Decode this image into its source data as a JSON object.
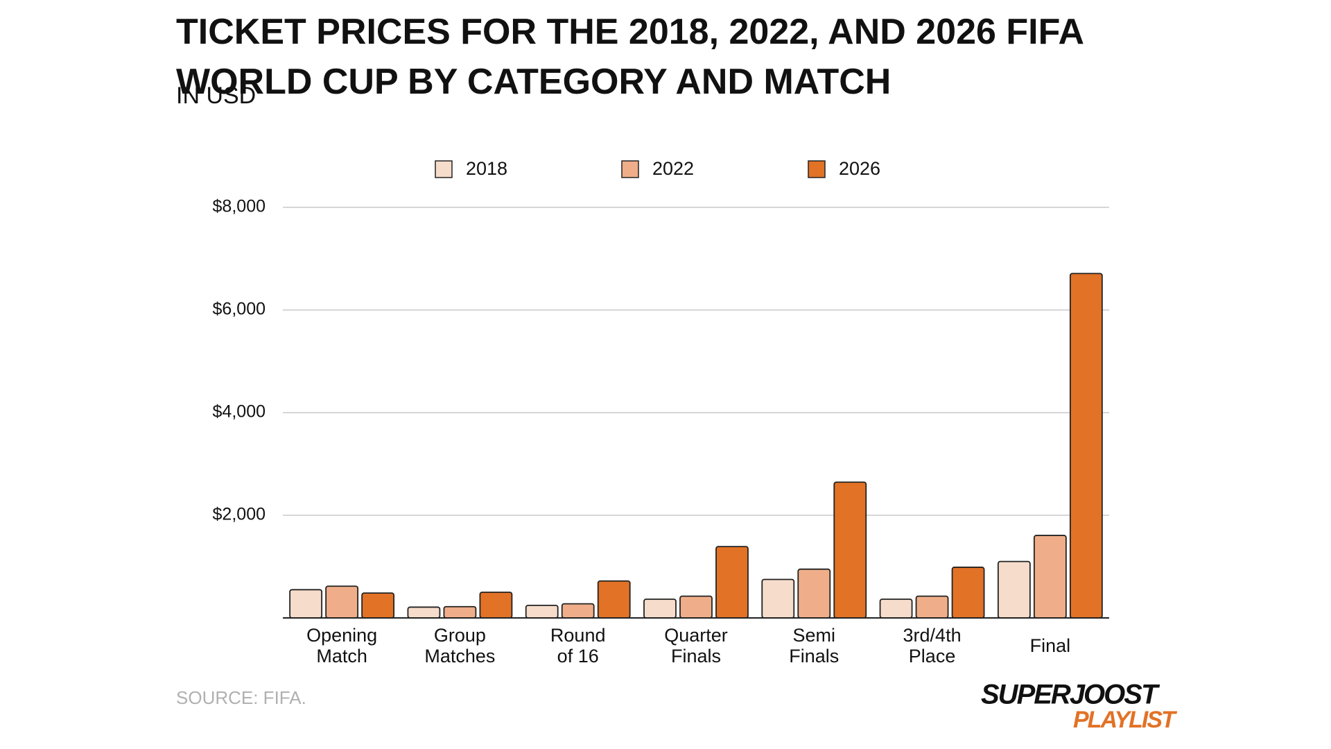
{
  "chart_data": {
    "type": "bar",
    "title": "TICKET PRICES FOR THE 2018, 2022, AND 2026 FIFA\nWORLD CUP BY CATEGORY AND MATCH",
    "subtitle": "IN USD",
    "categories": [
      "Opening\nMatch",
      "Group\nMatches",
      "Round\nof 16",
      "Quarter\nFinals",
      "Semi\nFinals",
      "3rd/4th\nPlace",
      "Final"
    ],
    "series": [
      {
        "name": "2018",
        "color": "#f6dccb",
        "values": [
          550,
          210,
          245,
          365,
          750,
          365,
          1100
        ]
      },
      {
        "name": "2022",
        "color": "#efae89",
        "values": [
          618,
          220,
          275,
          424,
          950,
          424,
          1607
        ]
      },
      {
        "name": "2026",
        "color": "#e27226",
        "values": [
          485,
          500,
          720,
          1390,
          2645,
          987,
          6711
        ]
      }
    ],
    "ylim": [
      0,
      8000
    ],
    "yticks": [
      {
        "value": 2000,
        "label": "$2,000"
      },
      {
        "value": 4000,
        "label": "$4,000"
      },
      {
        "value": 6000,
        "label": "$6,000"
      },
      {
        "value": 8000,
        "label": "$8,000"
      }
    ],
    "grid": true,
    "legend": "top",
    "source": "SOURCE: FIFA.",
    "logo": {
      "line1": "SUPERJOOST",
      "line2": "PLAYLIST"
    }
  }
}
